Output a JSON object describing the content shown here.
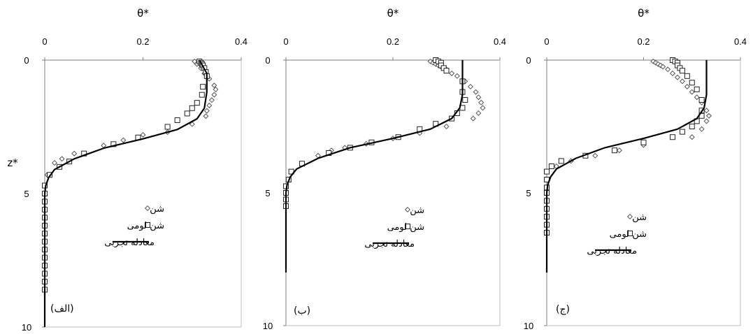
{
  "chart_data": [
    {
      "type": "scatter",
      "panel_label": "(الف)",
      "xlabel": "θ*",
      "ylabel": "z*",
      "xlim": [
        0,
        0.4
      ],
      "ylim": [
        0,
        10
      ],
      "y_inverted": true,
      "x_ticks": [
        "0",
        "0.2",
        "0.4"
      ],
      "y_ticks": [
        "0",
        "5",
        "10"
      ],
      "legend": {
        "placement": "lower-right",
        "entries": [
          "شن",
          "شن لومی",
          "معادله تجربی"
        ]
      },
      "series": [
        {
          "name": "شن",
          "marker": "diamond",
          "points": [
            [
              0.305,
              0.05
            ],
            [
              0.31,
              0.15
            ],
            [
              0.318,
              0.3
            ],
            [
              0.325,
              0.5
            ],
            [
              0.335,
              0.7
            ],
            [
              0.345,
              0.95
            ],
            [
              0.348,
              1.1
            ],
            [
              0.345,
              1.3
            ],
            [
              0.34,
              1.5
            ],
            [
              0.335,
              1.7
            ],
            [
              0.33,
              1.9
            ],
            [
              0.328,
              2.1
            ],
            [
              0.3,
              2.4
            ],
            [
              0.25,
              2.7
            ],
            [
              0.2,
              2.8
            ],
            [
              0.16,
              3.0
            ],
            [
              0.12,
              3.2
            ],
            [
              0.06,
              3.5
            ],
            [
              0.035,
              3.7
            ],
            [
              0.02,
              3.85
            ],
            [
              0.005,
              4.3
            ]
          ]
        },
        {
          "name": "شن لومی",
          "marker": "square",
          "points": [
            [
              0.315,
              0.05
            ],
            [
              0.318,
              0.1
            ],
            [
              0.32,
              0.15
            ],
            [
              0.322,
              0.2
            ],
            [
              0.325,
              0.3
            ],
            [
              0.328,
              0.45
            ],
            [
              0.33,
              0.6
            ],
            [
              0.322,
              1.0
            ],
            [
              0.32,
              1.3
            ],
            [
              0.31,
              1.6
            ],
            [
              0.3,
              1.8
            ],
            [
              0.29,
              2.0
            ],
            [
              0.27,
              2.25
            ],
            [
              0.25,
              2.5
            ],
            [
              0.19,
              2.9
            ],
            [
              0.14,
              3.15
            ],
            [
              0.08,
              3.5
            ],
            [
              0.05,
              3.8
            ],
            [
              0.03,
              4.0
            ],
            [
              0.01,
              4.3
            ],
            [
              0.0,
              4.7
            ],
            [
              0.0,
              5.0
            ],
            [
              0.0,
              5.3
            ],
            [
              0.0,
              5.6
            ],
            [
              0.0,
              5.9
            ],
            [
              0.0,
              6.2
            ],
            [
              0.0,
              6.5
            ],
            [
              0.0,
              6.8
            ],
            [
              0.0,
              7.1
            ],
            [
              0.0,
              7.4
            ],
            [
              0.0,
              7.7
            ],
            [
              0.0,
              8.0
            ],
            [
              0.0,
              8.3
            ],
            [
              0.0,
              8.6
            ]
          ]
        },
        {
          "name": "معادله تجربی",
          "style": "line",
          "points": [
            [
              0.315,
              0
            ],
            [
              0.33,
              0.5
            ],
            [
              0.33,
              1.2
            ],
            [
              0.325,
              1.8
            ],
            [
              0.31,
              2.2
            ],
            [
              0.27,
              2.6
            ],
            [
              0.2,
              2.95
            ],
            [
              0.12,
              3.3
            ],
            [
              0.06,
              3.7
            ],
            [
              0.02,
              4.1
            ],
            [
              0.008,
              4.4
            ],
            [
              0.002,
              4.7
            ],
            [
              0.0,
              5.0
            ],
            [
              0.0,
              10.0
            ]
          ]
        }
      ]
    },
    {
      "type": "scatter",
      "panel_label": "(ب)",
      "xlabel": "θ*",
      "ylabel": "",
      "xlim": [
        0,
        0.4
      ],
      "ylim": [
        0,
        10
      ],
      "y_inverted": true,
      "x_ticks": [
        "0",
        "0.2",
        "0.4"
      ],
      "y_ticks": [
        "0",
        "5",
        "10"
      ],
      "legend": {
        "placement": "lower-right",
        "entries": [
          "شن",
          "شن لومی",
          "معادله تجربی"
        ]
      },
      "series": [
        {
          "name": "شن",
          "marker": "diamond",
          "points": [
            [
              0.27,
              0.05
            ],
            [
              0.275,
              0.1
            ],
            [
              0.28,
              0.15
            ],
            [
              0.285,
              0.2
            ],
            [
              0.29,
              0.25
            ],
            [
              0.3,
              0.35
            ],
            [
              0.31,
              0.5
            ],
            [
              0.32,
              0.6
            ],
            [
              0.335,
              0.8
            ],
            [
              0.345,
              1.0
            ],
            [
              0.355,
              1.2
            ],
            [
              0.36,
              1.4
            ],
            [
              0.365,
              1.6
            ],
            [
              0.368,
              1.8
            ],
            [
              0.36,
              2.0
            ],
            [
              0.35,
              2.2
            ],
            [
              0.3,
              2.5
            ],
            [
              0.25,
              2.75
            ],
            [
              0.2,
              2.95
            ],
            [
              0.15,
              3.15
            ],
            [
              0.11,
              3.3
            ],
            [
              0.085,
              3.4
            ],
            [
              0.06,
              3.6
            ]
          ]
        },
        {
          "name": "شن لومی",
          "marker": "square",
          "points": [
            [
              0.28,
              0.0
            ],
            [
              0.285,
              0.05
            ],
            [
              0.29,
              0.1
            ],
            [
              0.29,
              0.2
            ],
            [
              0.295,
              0.3
            ],
            [
              0.3,
              0.4
            ],
            [
              0.33,
              0.8
            ],
            [
              0.33,
              1.2
            ],
            [
              0.335,
              1.5
            ],
            [
              0.33,
              1.8
            ],
            [
              0.32,
              2.0
            ],
            [
              0.31,
              2.2
            ],
            [
              0.28,
              2.4
            ],
            [
              0.25,
              2.6
            ],
            [
              0.21,
              2.9
            ],
            [
              0.16,
              3.1
            ],
            [
              0.12,
              3.3
            ],
            [
              0.08,
              3.5
            ],
            [
              0.03,
              3.9
            ],
            [
              0.01,
              4.2
            ],
            [
              0.005,
              4.5
            ],
            [
              0.0,
              4.75
            ],
            [
              0.0,
              5.0
            ],
            [
              0.0,
              5.25
            ],
            [
              0.0,
              5.5
            ]
          ]
        },
        {
          "name": "معادله تجربی",
          "style": "line",
          "points": [
            [
              0.33,
              0
            ],
            [
              0.33,
              1.3
            ],
            [
              0.325,
              1.8
            ],
            [
              0.31,
              2.2
            ],
            [
              0.27,
              2.6
            ],
            [
              0.2,
              2.95
            ],
            [
              0.12,
              3.3
            ],
            [
              0.06,
              3.7
            ],
            [
              0.02,
              4.1
            ],
            [
              0.008,
              4.4
            ],
            [
              0.002,
              4.7
            ],
            [
              0.0,
              5.0
            ],
            [
              0.0,
              8.0
            ]
          ]
        }
      ]
    },
    {
      "type": "scatter",
      "panel_label": "(ج)",
      "xlabel": "θ*",
      "ylabel": "",
      "xlim": [
        0,
        0.4
      ],
      "ylim": [
        0,
        10
      ],
      "y_inverted": true,
      "x_ticks": [
        "0",
        "0.2",
        "0.4"
      ],
      "y_ticks": [
        "0",
        "5",
        "10"
      ],
      "legend": {
        "placement": "lower-right",
        "entries": [
          "شن",
          "شن لومی",
          "معادله تجربی"
        ]
      },
      "series": [
        {
          "name": "شن",
          "marker": "diamond",
          "points": [
            [
              0.22,
              0.05
            ],
            [
              0.225,
              0.1
            ],
            [
              0.23,
              0.15
            ],
            [
              0.235,
              0.2
            ],
            [
              0.24,
              0.25
            ],
            [
              0.25,
              0.35
            ],
            [
              0.26,
              0.5
            ],
            [
              0.27,
              0.65
            ],
            [
              0.28,
              0.8
            ],
            [
              0.29,
              1.0
            ],
            [
              0.3,
              1.2
            ],
            [
              0.31,
              1.4
            ],
            [
              0.32,
              1.6
            ],
            [
              0.33,
              1.9
            ],
            [
              0.335,
              2.1
            ],
            [
              0.33,
              2.3
            ],
            [
              0.32,
              2.6
            ],
            [
              0.3,
              2.9
            ],
            [
              0.2,
              3.2
            ],
            [
              0.15,
              3.4
            ],
            [
              0.1,
              3.6
            ],
            [
              0.05,
              3.8
            ],
            [
              0.02,
              4.0
            ]
          ]
        },
        {
          "name": "شن لومی",
          "marker": "square",
          "points": [
            [
              0.26,
              0.0
            ],
            [
              0.265,
              0.05
            ],
            [
              0.27,
              0.1
            ],
            [
              0.27,
              0.2
            ],
            [
              0.275,
              0.3
            ],
            [
              0.28,
              0.4
            ],
            [
              0.29,
              0.6
            ],
            [
              0.3,
              0.85
            ],
            [
              0.31,
              1.1
            ],
            [
              0.32,
              1.5
            ],
            [
              0.32,
              1.9
            ],
            [
              0.32,
              2.1
            ],
            [
              0.31,
              2.3
            ],
            [
              0.3,
              2.5
            ],
            [
              0.28,
              2.7
            ],
            [
              0.26,
              2.9
            ],
            [
              0.2,
              3.1
            ],
            [
              0.14,
              3.4
            ],
            [
              0.08,
              3.6
            ],
            [
              0.03,
              3.8
            ],
            [
              0.01,
              4.0
            ],
            [
              0.0,
              4.2
            ],
            [
              0.0,
              4.5
            ],
            [
              0.0,
              4.8
            ],
            [
              0.0,
              5.0
            ],
            [
              0.0,
              5.3
            ],
            [
              0.0,
              5.6
            ],
            [
              0.0,
              5.9
            ],
            [
              0.0,
              6.2
            ],
            [
              0.0,
              6.5
            ]
          ]
        },
        {
          "name": "معادله تجربی",
          "style": "line",
          "points": [
            [
              0.33,
              0
            ],
            [
              0.33,
              1.3
            ],
            [
              0.325,
              1.8
            ],
            [
              0.31,
              2.2
            ],
            [
              0.27,
              2.6
            ],
            [
              0.2,
              2.95
            ],
            [
              0.12,
              3.3
            ],
            [
              0.06,
              3.7
            ],
            [
              0.02,
              4.1
            ],
            [
              0.008,
              4.4
            ],
            [
              0.002,
              4.7
            ],
            [
              0.0,
              5.0
            ],
            [
              0.0,
              8.0
            ]
          ]
        }
      ]
    }
  ]
}
